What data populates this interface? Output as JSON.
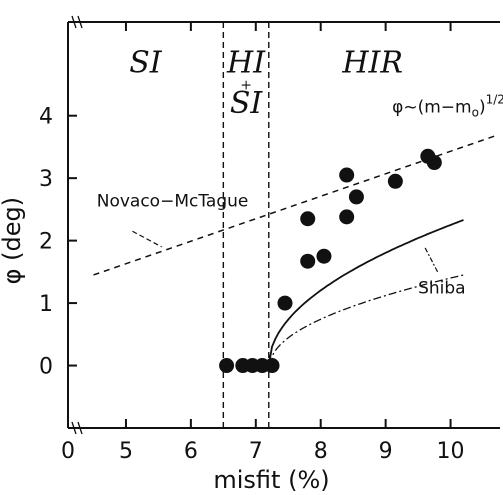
{
  "chart_data": {
    "type": "scatter",
    "xlabel": "misfit (%)",
    "ylabel": "φ (deg)",
    "xlim": [
      4.4,
      10.7
    ],
    "ylim": [
      -1.0,
      5.5
    ],
    "x_ticks": [
      0,
      5,
      6,
      7,
      8,
      9,
      10
    ],
    "x_tick_labels": [
      "0",
      "5",
      "6",
      "7",
      "8",
      "9",
      "10"
    ],
    "y_ticks": [
      0,
      1,
      2,
      3,
      4
    ],
    "y_tick_labels": [
      "0",
      "1",
      "2",
      "3",
      "4"
    ],
    "axis_break_x": true,
    "grid": false,
    "regions": [
      {
        "label": "SI",
        "x": 5.3,
        "y": 4.85
      },
      {
        "label": "HI",
        "x": 6.85,
        "y": 4.85
      },
      {
        "label": "+",
        "x": 6.85,
        "y": 4.5
      },
      {
        "label": "SI",
        "x": 6.85,
        "y": 4.2
      },
      {
        "label": "HIR",
        "x": 8.8,
        "y": 4.85
      }
    ],
    "region_boundaries": [
      6.5,
      7.2
    ],
    "points": [
      {
        "x": 6.55,
        "y": 0.0
      },
      {
        "x": 6.8,
        "y": 0.0
      },
      {
        "x": 6.95,
        "y": 0.0
      },
      {
        "x": 7.1,
        "y": 0.0
      },
      {
        "x": 7.25,
        "y": 0.0
      },
      {
        "x": 7.45,
        "y": 1.0
      },
      {
        "x": 7.8,
        "y": 2.35
      },
      {
        "x": 7.8,
        "y": 1.67
      },
      {
        "x": 8.05,
        "y": 1.75
      },
      {
        "x": 8.4,
        "y": 3.05
      },
      {
        "x": 8.4,
        "y": 2.38
      },
      {
        "x": 8.55,
        "y": 2.7
      },
      {
        "x": 9.15,
        "y": 2.95
      },
      {
        "x": 9.65,
        "y": 3.35
      },
      {
        "x": 9.75,
        "y": 3.25
      }
    ],
    "series": [
      {
        "name": "φ~(m-m₀)^1/2",
        "style": "solid",
        "m0": 7.2,
        "coeff": 1.345,
        "x_end": 10.2
      },
      {
        "name": "Novaco-McTague",
        "style": "dashed",
        "x_start": 4.5,
        "y_start": 1.45,
        "slope": 0.36,
        "x_end": 10.7
      },
      {
        "name": "Shiba",
        "style": "dashdot",
        "m0": 7.22,
        "coeff": 0.84,
        "x_end": 10.2
      }
    ],
    "annotations": [
      {
        "text": "φ~(m−m",
        "sub": "o",
        "tail": ")",
        "sup": "1/2",
        "x": 9.1,
        "y": 4.05
      },
      {
        "text": "Novaco−McTague",
        "x": 4.55,
        "y": 2.55
      },
      {
        "text": "Shiba",
        "x": 9.5,
        "y": 1.15
      }
    ]
  }
}
